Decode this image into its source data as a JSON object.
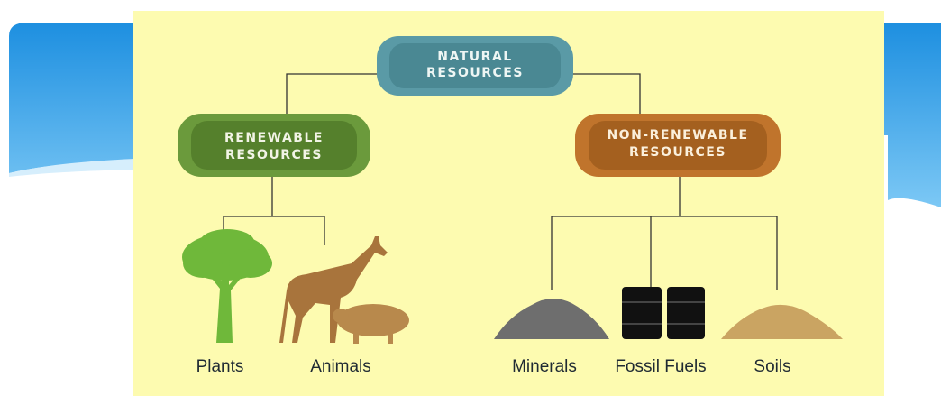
{
  "nodes": [
    {
      "lines": [
        "NATURAL",
        "RESOURCES"
      ]
    },
    {
      "lines": [
        "RENEWABLE",
        "RESOURCES"
      ]
    },
    {
      "lines": [
        "NON-RENEWABLE",
        "RESOURCES"
      ]
    }
  ],
  "leaves": [
    "Plants",
    "Animals",
    "Minerals",
    "Fossil Fuels",
    "Soils"
  ]
}
